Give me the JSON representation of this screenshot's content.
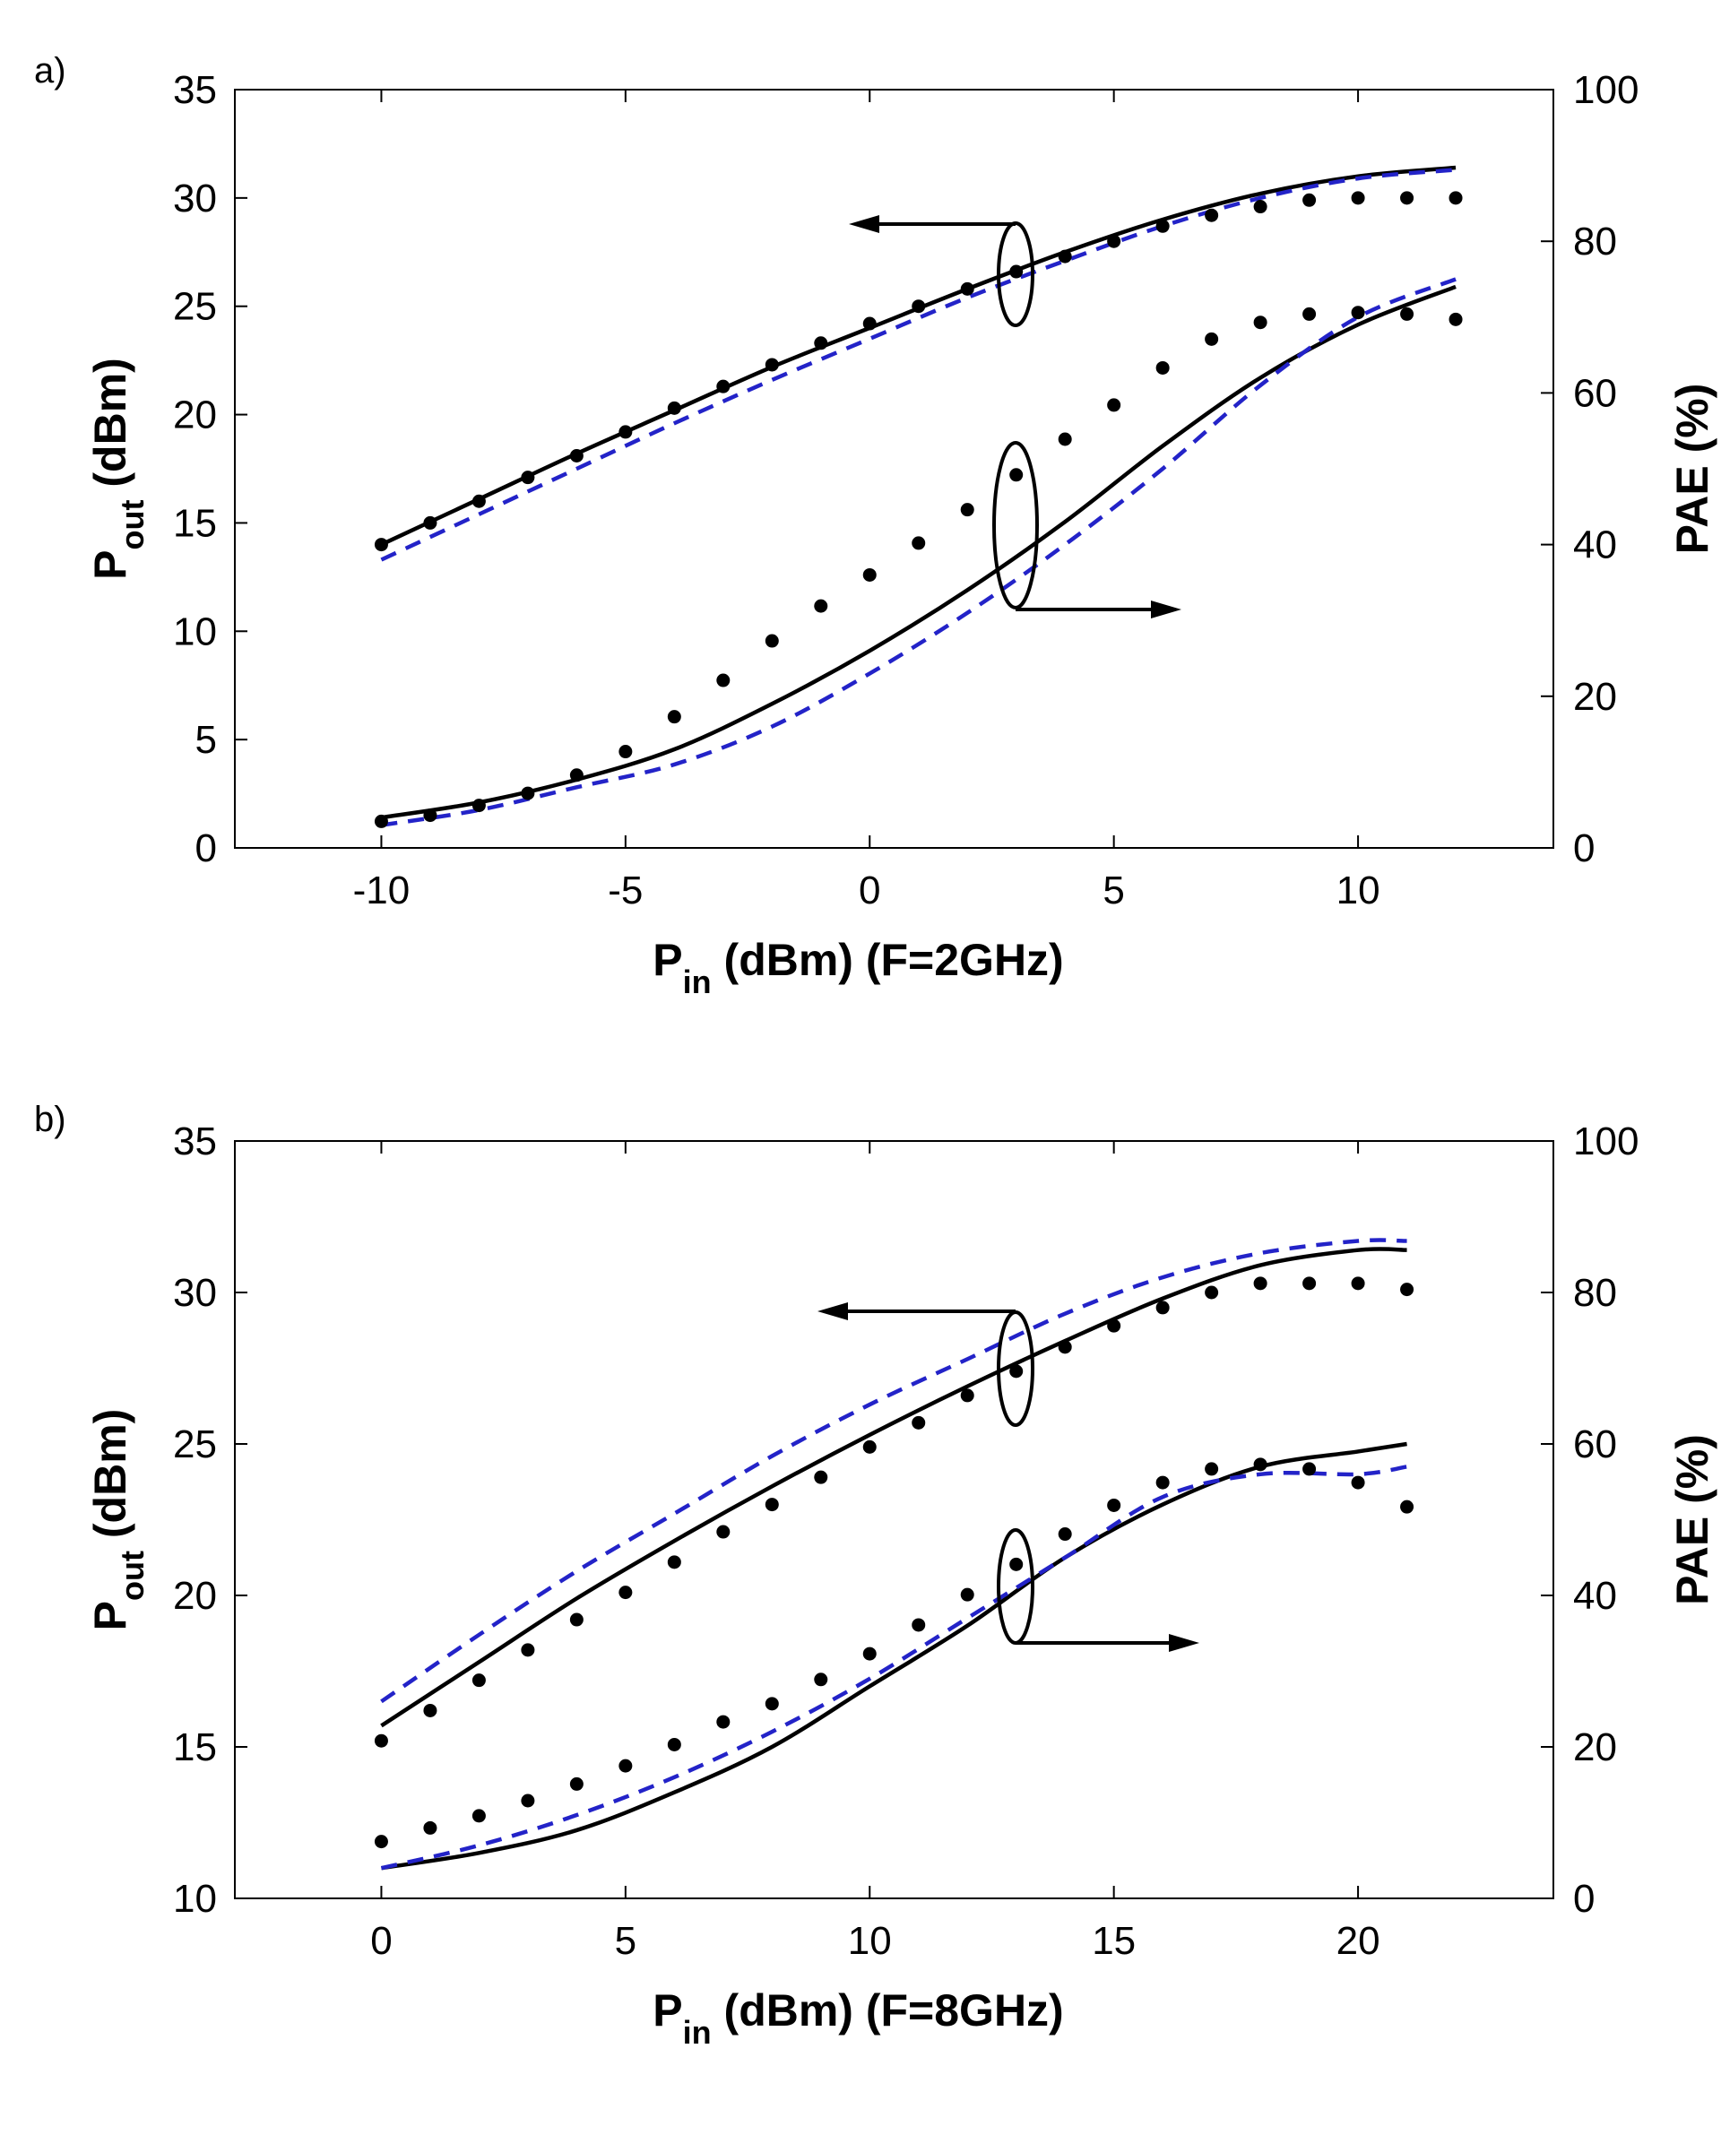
{
  "chart_data": [
    {
      "type": "line",
      "panel_label": "a)",
      "xlabel_main": "P",
      "xlabel_sub": "in",
      "xlabel_rest": " (dBm) (F=2GHz)",
      "ylabel_main": "P",
      "ylabel_sub": "out",
      "ylabel_rest": " (dBm)",
      "y2label": "PAE (%)",
      "xlim": [
        -13,
        14
      ],
      "ylim": [
        0,
        35
      ],
      "y2lim": [
        0,
        100
      ],
      "xticks": [
        -10,
        -5,
        0,
        5,
        10
      ],
      "yticks": [
        0,
        5,
        10,
        15,
        20,
        25,
        30,
        35
      ],
      "y2ticks": [
        0,
        20,
        40,
        60,
        80,
        100
      ],
      "series": [
        {
          "axis": "left",
          "style": "solid",
          "color": "#000000",
          "x": [
            -10,
            -8,
            -6,
            -4,
            -2,
            0,
            2,
            4,
            6,
            8,
            10,
            12
          ],
          "y": [
            14.0,
            16.1,
            18.2,
            20.2,
            22.2,
            24.0,
            25.8,
            27.5,
            29.0,
            30.2,
            31.0,
            31.4
          ]
        },
        {
          "axis": "left",
          "style": "dashed",
          "color": "#2323c8",
          "x": [
            -10,
            -8,
            -6,
            -4,
            -2,
            0,
            2,
            4,
            6,
            8,
            10,
            12
          ],
          "y": [
            13.3,
            15.4,
            17.5,
            19.6,
            21.6,
            23.5,
            25.4,
            27.1,
            28.7,
            30.0,
            30.9,
            31.3
          ]
        },
        {
          "axis": "left",
          "style": "dots",
          "color": "#000000",
          "x": [
            -10,
            -9,
            -8,
            -7,
            -6,
            -5,
            -4,
            -3,
            -2,
            -1,
            0,
            1,
            2,
            3,
            4,
            5,
            6,
            7,
            8,
            9,
            10,
            11,
            12
          ],
          "y": [
            14.0,
            15.0,
            16.0,
            17.1,
            18.1,
            19.2,
            20.3,
            21.3,
            22.3,
            23.3,
            24.2,
            25.0,
            25.8,
            26.6,
            27.3,
            28.0,
            28.7,
            29.2,
            29.6,
            29.9,
            30.0,
            30.0,
            30.0
          ]
        },
        {
          "axis": "right",
          "style": "solid",
          "color": "#000000",
          "x": [
            -10,
            -8,
            -6,
            -4,
            -2,
            0,
            2,
            4,
            6,
            8,
            10,
            12
          ],
          "y": [
            4,
            6,
            9,
            13,
            19,
            26,
            34,
            43,
            53,
            62,
            69,
            74
          ]
        },
        {
          "axis": "right",
          "style": "dashed",
          "color": "#2323c8",
          "x": [
            -10,
            -8,
            -6,
            -4,
            -2,
            0,
            2,
            4,
            6,
            8,
            10,
            12
          ],
          "y": [
            3,
            5,
            8,
            11,
            16,
            23,
            31,
            40,
            50,
            61,
            70,
            75
          ]
        },
        {
          "axis": "right",
          "style": "dots",
          "color": "#000000",
          "x": [
            -10,
            -9,
            -8,
            -7,
            -6,
            -5,
            -4,
            -3,
            -2,
            -1,
            0,
            1,
            2,
            3,
            4,
            5,
            6,
            7,
            8,
            9,
            10,
            11,
            12
          ],
          "y": [
            3.5,
            4.3,
            5.6,
            7.2,
            9.6,
            12.7,
            17.3,
            22.1,
            27.3,
            31.9,
            36.0,
            40.2,
            44.6,
            49.2,
            53.9,
            58.4,
            63.3,
            67.1,
            69.3,
            70.4,
            70.6,
            70.4,
            69.7
          ]
        }
      ]
    },
    {
      "type": "line",
      "panel_label": "b)",
      "xlabel_main": "P",
      "xlabel_sub": "in",
      "xlabel_rest": " (dBm) (F=8GHz)",
      "ylabel_main": "P",
      "ylabel_sub": "out",
      "ylabel_rest": " (dBm)",
      "y2label": "PAE (%)",
      "xlim": [
        -3,
        24
      ],
      "ylim": [
        10,
        35
      ],
      "y2lim": [
        0,
        100
      ],
      "xticks": [
        0,
        5,
        10,
        15,
        20
      ],
      "yticks": [
        10,
        15,
        20,
        25,
        30,
        35
      ],
      "y2ticks": [
        0,
        20,
        40,
        60,
        80,
        100
      ],
      "series": [
        {
          "axis": "left",
          "style": "solid",
          "color": "#000000",
          "x": [
            0,
            2,
            4,
            6,
            8,
            10,
            12,
            14,
            16,
            18,
            20,
            21
          ],
          "y": [
            15.7,
            17.8,
            19.9,
            21.8,
            23.6,
            25.3,
            26.9,
            28.4,
            29.8,
            30.9,
            31.4,
            31.4
          ]
        },
        {
          "axis": "left",
          "style": "dashed",
          "color": "#2323c8",
          "x": [
            0,
            2,
            4,
            6,
            8,
            10,
            12,
            14,
            16,
            18,
            20,
            21
          ],
          "y": [
            16.5,
            18.7,
            20.8,
            22.7,
            24.6,
            26.3,
            27.8,
            29.3,
            30.5,
            31.3,
            31.7,
            31.7
          ]
        },
        {
          "axis": "left",
          "style": "dots",
          "color": "#000000",
          "x": [
            0,
            1,
            2,
            3,
            4,
            5,
            6,
            7,
            8,
            9,
            10,
            11,
            12,
            13,
            14,
            15,
            16,
            17,
            18,
            19,
            20,
            21
          ],
          "y": [
            15.2,
            16.2,
            17.2,
            18.2,
            19.2,
            20.1,
            21.1,
            22.1,
            23.0,
            23.9,
            24.9,
            25.7,
            26.6,
            27.4,
            28.2,
            28.9,
            29.5,
            30.0,
            30.3,
            30.3,
            30.3,
            30.1
          ]
        },
        {
          "axis": "right",
          "style": "solid",
          "color": "#000000",
          "x": [
            0,
            2,
            4,
            6,
            8,
            10,
            12,
            14,
            16,
            18,
            20,
            21
          ],
          "y": [
            4,
            6,
            9,
            14,
            20,
            28,
            36,
            45,
            52,
            57,
            59,
            60
          ]
        },
        {
          "axis": "right",
          "style": "dashed",
          "color": "#2323c8",
          "x": [
            0,
            2,
            4,
            6,
            8,
            10,
            12,
            14,
            16,
            18,
            20,
            21
          ],
          "y": [
            4,
            7,
            11,
            16,
            22,
            29,
            37,
            45,
            53,
            56,
            56,
            57
          ]
        },
        {
          "axis": "right",
          "style": "dots",
          "color": "#000000",
          "x": [
            0,
            1,
            2,
            3,
            4,
            5,
            6,
            7,
            8,
            9,
            10,
            11,
            12,
            13,
            14,
            15,
            16,
            17,
            18,
            19,
            20,
            21
          ],
          "y": [
            7.5,
            9.3,
            10.9,
            12.9,
            15.1,
            17.5,
            20.3,
            23.3,
            25.7,
            28.9,
            32.3,
            36.1,
            40.1,
            44.1,
            48.1,
            51.9,
            54.9,
            56.7,
            57.3,
            56.7,
            54.9,
            51.7
          ]
        }
      ]
    }
  ]
}
